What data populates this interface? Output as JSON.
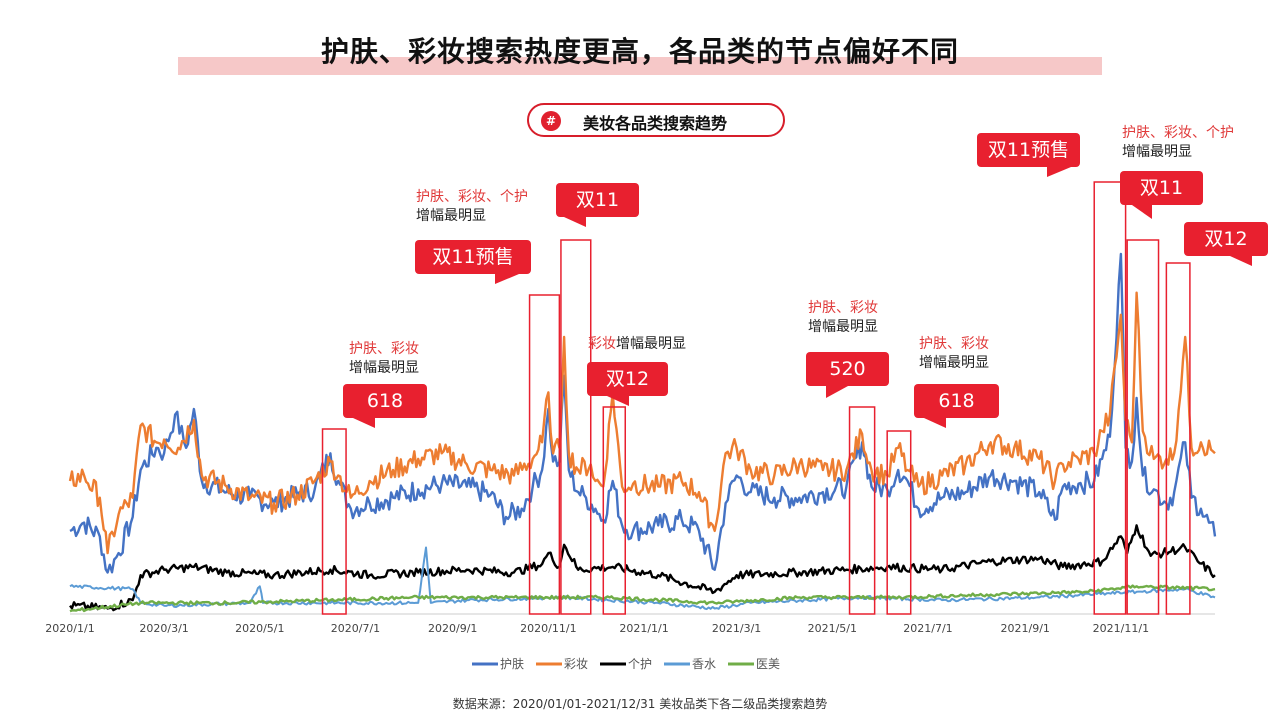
{
  "title": "护肤、彩妆搜索热度更高，各品类的节点偏好不同",
  "subtitle": "美妆各品类搜索趋势",
  "pill_icon": "#",
  "source": "数据来源：2020/01/01-2021/12/31 美妆品类下各二级品类搜索趋势",
  "annotations": [
    {
      "line1": "护肤、彩妆",
      "line2": "增幅最明显"
    },
    {
      "line1": "护肤、彩妆、个护",
      "line2": "增幅最明显"
    },
    {
      "line1_red": "彩妆",
      "line1_dark": "增幅最明显"
    },
    {
      "line1": "护肤、彩妆",
      "line2": "增幅最明显"
    },
    {
      "line1": "护肤、彩妆",
      "line2": "增幅最明显"
    },
    {
      "line1": "护肤、彩妆、个护",
      "line2": "增幅最明显"
    }
  ],
  "callouts": [
    "618",
    "双11预售",
    "双11",
    "双12",
    "520",
    "618",
    "双11预售",
    "双11",
    "双12"
  ],
  "colors": {
    "护肤": "#4472c4",
    "彩妆": "#ed7d31",
    "个护": "#000000",
    "香水": "#5b9bd5",
    "医美": "#70ad47",
    "accent": "#e8202f"
  },
  "chart_data": {
    "type": "line",
    "x_ticks": [
      "2020/1/1",
      "2020/3/1",
      "2020/5/1",
      "2020/7/1",
      "2020/9/1",
      "2020/11/1",
      "2021/1/1",
      "2021/3/1",
      "2021/5/1",
      "2021/7/1",
      "2021/9/1",
      "2021/11/1"
    ],
    "x_range": [
      "2020/1/1",
      "2021/12/31"
    ],
    "y_axis_shown": false,
    "legend_position": "bottom",
    "highlight_windows": [
      [
        "2020/6/10",
        "2020/6/25"
      ],
      [
        "2020/10/20",
        "2020/11/8"
      ],
      [
        "2020/11/9",
        "2020/11/28"
      ],
      [
        "2020/12/6",
        "2020/12/20"
      ],
      [
        "2021/5/12",
        "2021/5/28"
      ],
      [
        "2021/6/5",
        "2021/6/20"
      ],
      [
        "2021/10/15",
        "2021/11/4"
      ],
      [
        "2021/11/5",
        "2021/11/25"
      ],
      [
        "2021/11/30",
        "2021/12/15"
      ]
    ],
    "series": [
      {
        "name": "护肤",
        "points": [
          [
            "2020/1/1",
            30
          ],
          [
            "2020/1/10",
            33
          ],
          [
            "2020/1/20",
            28
          ],
          [
            "2020/1/25",
            15
          ],
          [
            "2020/2/1",
            22
          ],
          [
            "2020/2/10",
            35
          ],
          [
            "2020/2/15",
            52
          ],
          [
            "2020/2/25",
            60
          ],
          [
            "2020/3/1",
            58
          ],
          [
            "2020/3/8",
            72
          ],
          [
            "2020/3/15",
            60
          ],
          [
            "2020/3/20",
            74
          ],
          [
            "2020/3/25",
            48
          ],
          [
            "2020/4/10",
            44
          ],
          [
            "2020/4/25",
            42
          ],
          [
            "2020/5/10",
            40
          ],
          [
            "2020/5/25",
            43
          ],
          [
            "2020/6/5",
            45
          ],
          [
            "2020/6/15",
            58
          ],
          [
            "2020/6/20",
            48
          ],
          [
            "2020/6/28",
            38
          ],
          [
            "2020/7/10",
            40
          ],
          [
            "2020/7/25",
            42
          ],
          [
            "2020/8/10",
            45
          ],
          [
            "2020/8/25",
            47
          ],
          [
            "2020/9/10",
            46
          ],
          [
            "2020/9/25",
            43
          ],
          [
            "2020/10/5",
            35
          ],
          [
            "2020/10/15",
            38
          ],
          [
            "2020/10/22",
            46
          ],
          [
            "2020/10/28",
            52
          ],
          [
            "2020/11/1",
            74
          ],
          [
            "2020/11/4",
            55
          ],
          [
            "2020/11/8",
            55
          ],
          [
            "2020/11/11",
            86
          ],
          [
            "2020/11/14",
            52
          ],
          [
            "2020/11/20",
            44
          ],
          [
            "2020/11/25",
            42
          ],
          [
            "2020/12/1",
            38
          ],
          [
            "2020/12/6",
            34
          ],
          [
            "2020/12/12",
            48
          ],
          [
            "2020/12/18",
            32
          ],
          [
            "2020/12/25",
            30
          ],
          [
            "2021/1/10",
            32
          ],
          [
            "2021/1/25",
            34
          ],
          [
            "2021/2/5",
            30
          ],
          [
            "2021/2/15",
            16
          ],
          [
            "2021/2/22",
            40
          ],
          [
            "2021/3/1",
            50
          ],
          [
            "2021/3/10",
            44
          ],
          [
            "2021/3/25",
            42
          ],
          [
            "2021/4/10",
            42
          ],
          [
            "2021/4/25",
            44
          ],
          [
            "2021/5/10",
            46
          ],
          [
            "2021/5/20",
            62
          ],
          [
            "2021/5/26",
            46
          ],
          [
            "2021/6/5",
            45
          ],
          [
            "2021/6/12",
            52
          ],
          [
            "2021/6/18",
            48
          ],
          [
            "2021/6/25",
            38
          ],
          [
            "2021/7/10",
            42
          ],
          [
            "2021/7/25",
            44
          ],
          [
            "2021/8/10",
            50
          ],
          [
            "2021/8/25",
            48
          ],
          [
            "2021/9/10",
            44
          ],
          [
            "2021/9/20",
            34
          ],
          [
            "2021/9/25",
            46
          ],
          [
            "2021/10/5",
            47
          ],
          [
            "2021/10/15",
            48
          ],
          [
            "2021/10/20",
            56
          ],
          [
            "2021/10/25",
            64
          ],
          [
            "2021/11/1",
            130
          ],
          [
            "2021/11/4",
            60
          ],
          [
            "2021/11/8",
            55
          ],
          [
            "2021/11/11",
            78
          ],
          [
            "2021/11/15",
            50
          ],
          [
            "2021/11/22",
            45
          ],
          [
            "2021/11/30",
            40
          ],
          [
            "2021/12/5",
            44
          ],
          [
            "2021/12/12",
            62
          ],
          [
            "2021/12/16",
            42
          ],
          [
            "2021/12/22",
            38
          ],
          [
            "2021/12/31",
            28
          ]
        ]
      },
      {
        "name": "彩妆",
        "points": [
          [
            "2020/1/1",
            48
          ],
          [
            "2020/1/10",
            50
          ],
          [
            "2020/1/20",
            42
          ],
          [
            "2020/1/25",
            22
          ],
          [
            "2020/2/1",
            36
          ],
          [
            "2020/2/10",
            42
          ],
          [
            "2020/2/15",
            68
          ],
          [
            "2020/2/25",
            62
          ],
          [
            "2020/3/1",
            63
          ],
          [
            "2020/3/10",
            60
          ],
          [
            "2020/3/20",
            70
          ],
          [
            "2020/3/25",
            50
          ],
          [
            "2020/4/10",
            46
          ],
          [
            "2020/4/25",
            42
          ],
          [
            "2020/5/10",
            40
          ],
          [
            "2020/5/25",
            43
          ],
          [
            "2020/6/5",
            48
          ],
          [
            "2020/6/15",
            55
          ],
          [
            "2020/6/20",
            50
          ],
          [
            "2020/6/28",
            42
          ],
          [
            "2020/7/10",
            48
          ],
          [
            "2020/7/25",
            52
          ],
          [
            "2020/8/10",
            56
          ],
          [
            "2020/8/25",
            58
          ],
          [
            "2020/9/10",
            54
          ],
          [
            "2020/9/25",
            52
          ],
          [
            "2020/10/10",
            50
          ],
          [
            "2020/10/22",
            56
          ],
          [
            "2020/10/28",
            62
          ],
          [
            "2020/11/1",
            80
          ],
          [
            "2020/11/4",
            58
          ],
          [
            "2020/11/8",
            60
          ],
          [
            "2020/11/11",
            100
          ],
          [
            "2020/11/14",
            58
          ],
          [
            "2020/11/20",
            52
          ],
          [
            "2020/11/28",
            54
          ],
          [
            "2020/12/1",
            48
          ],
          [
            "2020/12/6",
            46
          ],
          [
            "2020/12/12",
            80
          ],
          [
            "2020/12/18",
            46
          ],
          [
            "2020/12/25",
            47
          ],
          [
            "2021/1/10",
            46
          ],
          [
            "2021/1/25",
            48
          ],
          [
            "2021/2/5",
            44
          ],
          [
            "2021/2/15",
            30
          ],
          [
            "2021/2/22",
            58
          ],
          [
            "2021/3/1",
            60
          ],
          [
            "2021/3/10",
            52
          ],
          [
            "2021/3/25",
            50
          ],
          [
            "2021/4/10",
            54
          ],
          [
            "2021/4/25",
            52
          ],
          [
            "2021/5/10",
            52
          ],
          [
            "2021/5/20",
            65
          ],
          [
            "2021/5/26",
            52
          ],
          [
            "2021/6/5",
            50
          ],
          [
            "2021/6/12",
            60
          ],
          [
            "2021/6/18",
            52
          ],
          [
            "2021/6/25",
            46
          ],
          [
            "2021/7/10",
            50
          ],
          [
            "2021/7/25",
            54
          ],
          [
            "2021/8/10",
            62
          ],
          [
            "2021/8/25",
            60
          ],
          [
            "2021/9/10",
            56
          ],
          [
            "2021/9/20",
            48
          ],
          [
            "2021/9/25",
            54
          ],
          [
            "2021/10/5",
            56
          ],
          [
            "2021/10/15",
            58
          ],
          [
            "2021/10/20",
            66
          ],
          [
            "2021/10/25",
            72
          ],
          [
            "2021/11/1",
            108
          ],
          [
            "2021/11/4",
            70
          ],
          [
            "2021/11/8",
            62
          ],
          [
            "2021/11/11",
            116
          ],
          [
            "2021/11/15",
            66
          ],
          [
            "2021/11/22",
            56
          ],
          [
            "2021/11/30",
            56
          ],
          [
            "2021/12/5",
            58
          ],
          [
            "2021/12/12",
            100
          ],
          [
            "2021/12/16",
            60
          ],
          [
            "2021/12/22",
            62
          ],
          [
            "2021/12/31",
            58
          ]
        ]
      },
      {
        "name": "个护",
        "points": [
          [
            "2020/1/1",
            3
          ],
          [
            "2020/1/25",
            2
          ],
          [
            "2020/2/10",
            5
          ],
          [
            "2020/2/15",
            14
          ],
          [
            "2020/3/1",
            16
          ],
          [
            "2020/3/20",
            17
          ],
          [
            "2020/4/10",
            15
          ],
          [
            "2020/5/10",
            14
          ],
          [
            "2020/6/15",
            16
          ],
          [
            "2020/7/10",
            14
          ],
          [
            "2020/8/10",
            15
          ],
          [
            "2020/9/10",
            16
          ],
          [
            "2020/10/10",
            15
          ],
          [
            "2020/10/28",
            18
          ],
          [
            "2020/11/1",
            22
          ],
          [
            "2020/11/8",
            17
          ],
          [
            "2020/11/11",
            25
          ],
          [
            "2020/11/20",
            16
          ],
          [
            "2020/12/12",
            17
          ],
          [
            "2021/1/10",
            14
          ],
          [
            "2021/2/15",
            8
          ],
          [
            "2021/3/1",
            14
          ],
          [
            "2021/4/10",
            15
          ],
          [
            "2021/5/10",
            16
          ],
          [
            "2021/6/5",
            17
          ],
          [
            "2021/7/10",
            16
          ],
          [
            "2021/8/10",
            19
          ],
          [
            "2021/9/10",
            20
          ],
          [
            "2021/9/25",
            17
          ],
          [
            "2021/10/20",
            19
          ],
          [
            "2021/11/1",
            28
          ],
          [
            "2021/11/5",
            22
          ],
          [
            "2021/11/11",
            32
          ],
          [
            "2021/11/20",
            21
          ],
          [
            "2021/12/12",
            24
          ],
          [
            "2021/12/20",
            19
          ],
          [
            "2021/12/31",
            14
          ]
        ]
      },
      {
        "name": "香水",
        "points": [
          [
            "2020/1/1",
            10
          ],
          [
            "2020/2/10",
            9
          ],
          [
            "2020/2/15",
            4
          ],
          [
            "2020/3/1",
            3
          ],
          [
            "2020/4/25",
            4
          ],
          [
            "2020/5/1",
            10
          ],
          [
            "2020/5/3",
            4
          ],
          [
            "2020/6/15",
            4
          ],
          [
            "2020/8/10",
            4
          ],
          [
            "2020/8/15",
            24
          ],
          [
            "2020/8/18",
            4
          ],
          [
            "2020/9/10",
            5
          ],
          [
            "2020/11/11",
            6
          ],
          [
            "2021/1/10",
            4
          ],
          [
            "2021/2/15",
            2
          ],
          [
            "2021/3/10",
            4
          ],
          [
            "2021/5/20",
            6
          ],
          [
            "2021/7/10",
            5
          ],
          [
            "2021/9/10",
            6
          ],
          [
            "2021/11/11",
            8
          ],
          [
            "2021/12/12",
            9
          ],
          [
            "2021/12/31",
            6
          ]
        ]
      },
      {
        "name": "医美",
        "points": [
          [
            "2020/1/1",
            1
          ],
          [
            "2020/2/15",
            4
          ],
          [
            "2020/4/10",
            4
          ],
          [
            "2020/6/15",
            5
          ],
          [
            "2020/8/10",
            6
          ],
          [
            "2020/10/10",
            6
          ],
          [
            "2020/12/10",
            6
          ],
          [
            "2021/2/15",
            4
          ],
          [
            "2021/4/10",
            6
          ],
          [
            "2021/6/10",
            6
          ],
          [
            "2021/8/10",
            7
          ],
          [
            "2021/10/10",
            8
          ],
          [
            "2021/11/11",
            10
          ],
          [
            "2021/12/31",
            9
          ]
        ]
      }
    ]
  }
}
